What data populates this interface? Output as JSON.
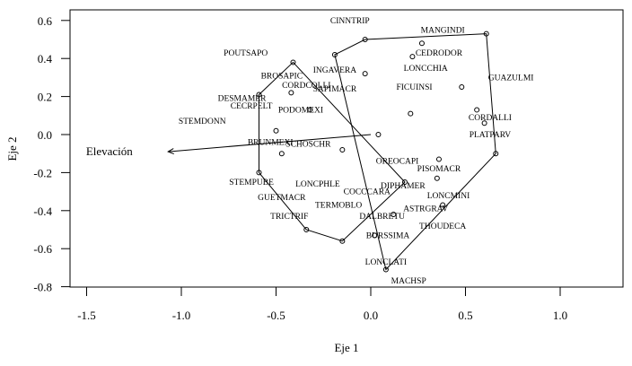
{
  "chart_data": {
    "type": "scatter",
    "title": "",
    "xlabel": "Eje 1",
    "ylabel": "Eje 2",
    "xlim": [
      -1.6,
      1.33
    ],
    "ylim": [
      -0.8,
      0.65
    ],
    "xticks": [
      -1.5,
      -1.0,
      -0.5,
      0.0,
      0.5,
      1.0
    ],
    "xtick_labels": [
      "-1.5",
      "-1.0",
      "-0.5",
      "0.0",
      "0.5",
      "1.0"
    ],
    "yticks": [
      0.6,
      0.4,
      0.2,
      0.0,
      -0.2,
      -0.4,
      -0.6,
      -0.8
    ],
    "ytick_labels": [
      "0.6",
      "0.4",
      "0.2",
      "0.0",
      "-0.2",
      "-0.4",
      "-0.6",
      "-0.8"
    ],
    "grid": false,
    "points": [
      {
        "x": -0.41,
        "y": 0.38
      },
      {
        "x": -0.59,
        "y": 0.21
      },
      {
        "x": -0.59,
        "y": -0.2
      },
      {
        "x": -0.34,
        "y": -0.5
      },
      {
        "x": -0.15,
        "y": -0.56
      },
      {
        "x": 0.18,
        "y": -0.25
      },
      {
        "x": -0.19,
        "y": 0.42
      },
      {
        "x": -0.03,
        "y": 0.5
      },
      {
        "x": 0.61,
        "y": 0.53
      },
      {
        "x": 0.66,
        "y": -0.1
      },
      {
        "x": 0.08,
        "y": -0.71
      },
      {
        "x": 0.27,
        "y": 0.48
      },
      {
        "x": 0.22,
        "y": 0.41
      },
      {
        "x": -0.03,
        "y": 0.32
      },
      {
        "x": 0.48,
        "y": 0.25
      },
      {
        "x": 0.21,
        "y": 0.11
      },
      {
        "x": 0.56,
        "y": 0.13
      },
      {
        "x": 0.6,
        "y": 0.06
      },
      {
        "x": -0.42,
        "y": 0.22
      },
      {
        "x": -0.32,
        "y": 0.13
      },
      {
        "x": -0.5,
        "y": 0.02
      },
      {
        "x": 0.04,
        "y": 0.0
      },
      {
        "x": -0.47,
        "y": -0.1
      },
      {
        "x": -0.15,
        "y": -0.08
      },
      {
        "x": 0.36,
        "y": -0.13
      },
      {
        "x": 0.35,
        "y": -0.23
      },
      {
        "x": 0.12,
        "y": -0.42
      },
      {
        "x": 0.02,
        "y": -0.53
      },
      {
        "x": 0.38,
        "y": -0.37
      }
    ],
    "hulls": [
      {
        "name": "hull-left",
        "vertices": [
          [
            -0.41,
            0.38
          ],
          [
            -0.59,
            0.21
          ],
          [
            -0.59,
            -0.2
          ],
          [
            -0.34,
            -0.5
          ],
          [
            -0.15,
            -0.56
          ],
          [
            0.18,
            -0.25
          ]
        ]
      },
      {
        "name": "hull-right",
        "vertices": [
          [
            -0.19,
            0.42
          ],
          [
            -0.03,
            0.5
          ],
          [
            0.61,
            0.53
          ],
          [
            0.66,
            -0.1
          ],
          [
            0.08,
            -0.71
          ]
        ]
      }
    ],
    "vector": {
      "label": "Elevación",
      "from": [
        0.0,
        0.0
      ],
      "to": [
        -1.07,
        -0.09
      ],
      "label_x": -1.38,
      "label_y": -0.1
    },
    "labels": [
      {
        "text": "CINNTRIP",
        "x": -0.11,
        "y": 0.6
      },
      {
        "text": "MANGINDI",
        "x": 0.38,
        "y": 0.55
      },
      {
        "text": "POUTSAPO",
        "x": -0.66,
        "y": 0.43
      },
      {
        "text": "CEDRODOR",
        "x": 0.36,
        "y": 0.43
      },
      {
        "text": "INGAVERA",
        "x": -0.19,
        "y": 0.34
      },
      {
        "text": "BROSAPIC",
        "x": -0.47,
        "y": 0.31
      },
      {
        "text": "LONCCHIA",
        "x": 0.29,
        "y": 0.35
      },
      {
        "text": "GUAZULMI",
        "x": 0.74,
        "y": 0.3
      },
      {
        "text": "CORDCOLLI",
        "x": -0.34,
        "y": 0.26
      },
      {
        "text": "SAPIMACR",
        "x": -0.19,
        "y": 0.24
      },
      {
        "text": "FICUINSI",
        "x": 0.23,
        "y": 0.25
      },
      {
        "text": "DESMAMER",
        "x": -0.68,
        "y": 0.19
      },
      {
        "text": "CECRPELT",
        "x": -0.63,
        "y": 0.15
      },
      {
        "text": "PODOMEXI",
        "x": -0.37,
        "y": 0.13
      },
      {
        "text": "CORDALLI",
        "x": 0.63,
        "y": 0.09
      },
      {
        "text": "STEMDONN",
        "x": -0.89,
        "y": 0.07
      },
      {
        "text": "PLATPARV",
        "x": 0.63,
        "y": 0.0
      },
      {
        "text": "BRUNMEXI",
        "x": -0.53,
        "y": -0.04
      },
      {
        "text": "SCHOSCHR",
        "x": -0.33,
        "y": -0.05
      },
      {
        "text": "OREOCAPI",
        "x": 0.14,
        "y": -0.14
      },
      {
        "text": "PISOMACR",
        "x": 0.36,
        "y": -0.18
      },
      {
        "text": "STEMPUBE",
        "x": -0.63,
        "y": -0.25
      },
      {
        "text": "LONCPHLE",
        "x": -0.28,
        "y": -0.26
      },
      {
        "text": "DIPHAMER",
        "x": 0.17,
        "y": -0.27
      },
      {
        "text": "COCCCARA",
        "x": -0.02,
        "y": -0.3
      },
      {
        "text": "LONCMINI",
        "x": 0.41,
        "y": -0.32
      },
      {
        "text": "GUETMACR",
        "x": -0.47,
        "y": -0.33
      },
      {
        "text": "TERMOBLO",
        "x": -0.17,
        "y": -0.37
      },
      {
        "text": "ASTRGRAV",
        "x": 0.29,
        "y": -0.39
      },
      {
        "text": "TRICTRIF",
        "x": -0.43,
        "y": -0.43
      },
      {
        "text": "DALBRETU",
        "x": 0.06,
        "y": -0.43
      },
      {
        "text": "THOUDECA",
        "x": 0.38,
        "y": -0.48
      },
      {
        "text": "BURSSIMA",
        "x": 0.09,
        "y": -0.53
      },
      {
        "text": "LONCLATI",
        "x": 0.08,
        "y": -0.67
      },
      {
        "text": "MACHSP",
        "x": 0.2,
        "y": -0.77
      }
    ]
  }
}
